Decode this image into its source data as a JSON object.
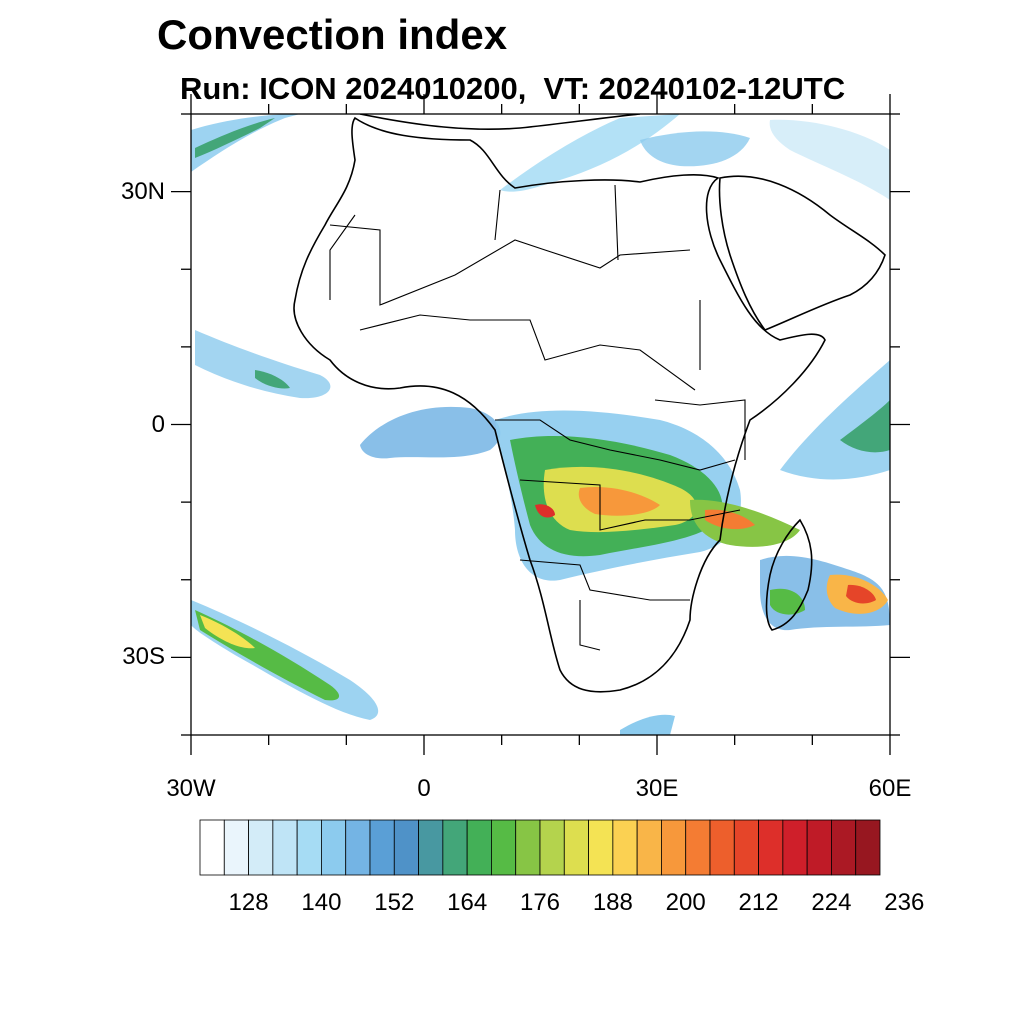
{
  "title": "Convection index",
  "subtitle": "Run: ICON 2024010200,  VT: 20240102-12UTC",
  "map": {
    "extent": {
      "lon_min": -30,
      "lon_max": 60,
      "lat_min": -40,
      "lat_max": 40
    },
    "lat_ticks": [
      {
        "value": 30,
        "label": "30N"
      },
      {
        "value": 0,
        "label": "0"
      },
      {
        "value": -30,
        "label": "30S"
      }
    ],
    "lon_ticks": [
      {
        "value": -30,
        "label": "30W"
      },
      {
        "value": 0,
        "label": "0"
      },
      {
        "value": 30,
        "label": "30E"
      },
      {
        "value": 60,
        "label": "60E"
      }
    ]
  },
  "colorbar": {
    "colors": [
      "#ffffff",
      "#eaf5fc",
      "#d3ecf8",
      "#bfe4f6",
      "#a6dcf4",
      "#8ccbee",
      "#74b4e4",
      "#5a9fd6",
      "#4f92c8",
      "#4898a1",
      "#43a679",
      "#43b057",
      "#56bb45",
      "#87c545",
      "#b4d34d",
      "#ddde4f",
      "#f4e354",
      "#fbd152",
      "#f9b548",
      "#f7983b",
      "#f47c33",
      "#ed5f2c",
      "#e54529",
      "#dd2f2a",
      "#cf1f2a",
      "#bf1b27",
      "#ab1924",
      "#971720"
    ],
    "labels": [
      "128",
      "140",
      "152",
      "164",
      "176",
      "188",
      "200",
      "212",
      "224",
      "236"
    ]
  }
}
